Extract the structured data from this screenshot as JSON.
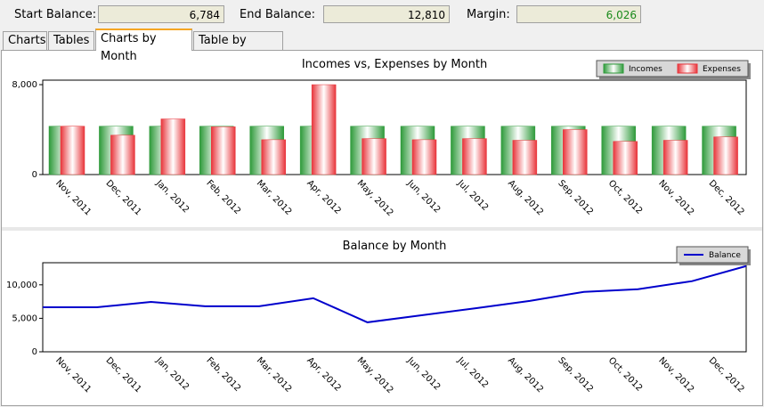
{
  "header": {
    "start_label": "Start Balance:",
    "start_value": "6,784",
    "end_label": "End Balance:",
    "end_value": "12,810",
    "margin_label": "Margin:",
    "margin_value": "6,026"
  },
  "tabs": [
    "Charts",
    "Tables",
    "Charts by Month",
    "Table by Month"
  ],
  "chart_data": [
    {
      "type": "bar",
      "title": "Incomes vs, Expenses by Month",
      "categories": [
        "Nov, 2011",
        "Dec, 2011",
        "Jan, 2012",
        "Feb, 2012",
        "Mar, 2012",
        "Apr, 2012",
        "May, 2012",
        "Jun, 2012",
        "Jul, 2012",
        "Aug, 2012",
        "Sep, 2012",
        "Oct, 2012",
        "Nov, 2012",
        "Dec, 2012"
      ],
      "series": [
        {
          "name": "Incomes",
          "color": "#2e9a3a",
          "values": [
            4300,
            4300,
            4300,
            4300,
            4300,
            4300,
            4300,
            4300,
            4300,
            4300,
            4300,
            4300,
            4300,
            4300
          ]
        },
        {
          "name": "Expenses",
          "color": "#e8343a",
          "values": [
            4300,
            3500,
            4950,
            4250,
            3100,
            8000,
            3200,
            3100,
            3200,
            3050,
            4000,
            2950,
            3050,
            3350
          ]
        }
      ],
      "ylim": [
        0,
        8400
      ],
      "yticks": [
        0,
        {
          "value": 8000,
          "label": "8,000"
        }
      ],
      "grid": false,
      "legend": "top-right"
    },
    {
      "type": "line",
      "title": "Balance by Month",
      "categories": [
        "Nov, 2011",
        "Dec, 2011",
        "Jan, 2012",
        "Feb, 2012",
        "Mar, 2012",
        "Apr, 2012",
        "May, 2012",
        "Jun, 2012",
        "Jul, 2012",
        "Aug, 2012",
        "Sep, 2012",
        "Oct, 2012",
        "Nov, 2012",
        "Dec, 2012"
      ],
      "series": [
        {
          "name": "Balance",
          "color": "#0000cc",
          "values": [
            6650,
            6650,
            7450,
            6800,
            6800,
            8000,
            4400,
            5450,
            6500,
            7600,
            8950,
            9350,
            10550,
            12800
          ]
        }
      ],
      "ylim": [
        0,
        13300
      ],
      "yticks": [
        0,
        {
          "value": 5000,
          "label": "5,000"
        },
        {
          "value": 10000,
          "label": "10,000"
        }
      ],
      "grid": false,
      "legend": "top-right"
    }
  ]
}
